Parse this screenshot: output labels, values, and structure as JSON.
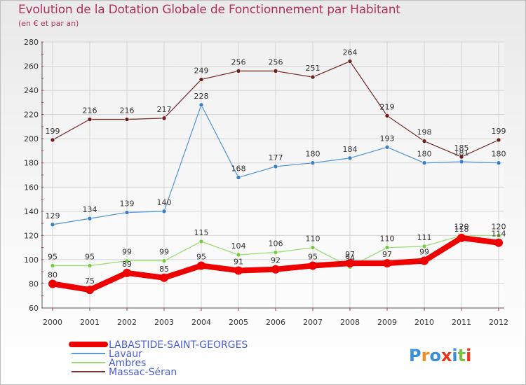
{
  "header": {
    "title": "Evolution de la Dotation Globale de Fonctionnement par Habitant",
    "subtitle": "(en € et par an)"
  },
  "logo": {
    "text": "Proxiti"
  },
  "chart_data": {
    "type": "line",
    "title": "Evolution de la Dotation Globale de Fonctionnement par Habitant",
    "subtitle": "(en € et par an)",
    "xlabel": "",
    "ylabel": "",
    "x": [
      "2000",
      "2001",
      "2002",
      "2003",
      "2004",
      "2005",
      "2006",
      "2007",
      "2008",
      "2009",
      "2010",
      "2011",
      "2012"
    ],
    "ylim": [
      60,
      280
    ],
    "yticks": [
      60,
      80,
      100,
      120,
      140,
      160,
      180,
      200,
      220,
      240,
      260,
      280
    ],
    "grid": true,
    "legend_position": "bottom-left",
    "series": [
      {
        "name": "LABASTIDE-SAINT-GEORGES",
        "color": "#ee0000",
        "marker_color": "#ee0000",
        "label_color": "#555555",
        "emphasis": true,
        "values": [
          80,
          75,
          89,
          85,
          95,
          91,
          92,
          95,
          97,
          97,
          99,
          118,
          114
        ]
      },
      {
        "name": "Lavaur",
        "color": "#5b9bd5",
        "marker_color": "#3a7fc4",
        "emphasis": false,
        "values": [
          129,
          134,
          139,
          140,
          228,
          168,
          177,
          180,
          184,
          193,
          180,
          181,
          180
        ]
      },
      {
        "name": "Ambres",
        "color": "#99dd77",
        "marker_color": "#77cc44",
        "emphasis": false,
        "values": [
          95,
          95,
          99,
          99,
          115,
          104,
          106,
          110,
          94,
          110,
          111,
          120,
          120
        ]
      },
      {
        "name": "Massac-Séran",
        "color": "#7a3333",
        "marker_color": "#6b1f1f",
        "emphasis": false,
        "values": [
          199,
          216,
          216,
          217,
          249,
          256,
          256,
          251,
          264,
          219,
          198,
          185,
          199
        ]
      }
    ]
  }
}
